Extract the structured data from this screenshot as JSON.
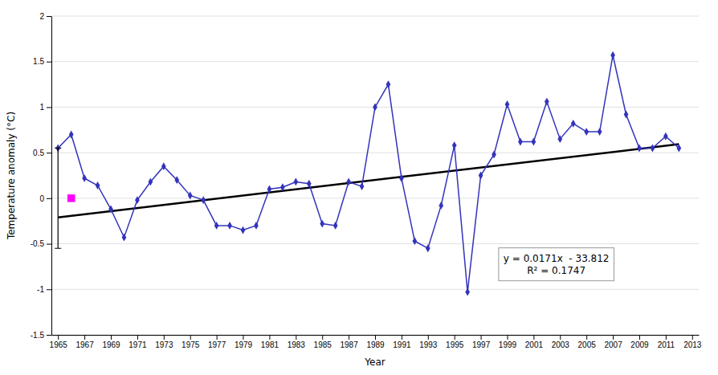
{
  "chart_data": {
    "type": "line",
    "xlabel": "Year",
    "ylabel": "Temperature anomaly (°C)",
    "x": [
      1965,
      1966,
      1967,
      1968,
      1969,
      1970,
      1971,
      1972,
      1973,
      1974,
      1975,
      1976,
      1977,
      1978,
      1979,
      1980,
      1981,
      1982,
      1983,
      1984,
      1985,
      1986,
      1987,
      1988,
      1989,
      1990,
      1991,
      1992,
      1993,
      1994,
      1995,
      1996,
      1997,
      1998,
      1999,
      2000,
      2001,
      2002,
      2003,
      2004,
      2005,
      2006,
      2007,
      2008,
      2009,
      2010,
      2011,
      2012
    ],
    "series": [
      {
        "type": "line",
        "color": "#3333BB",
        "marker": "diamond",
        "values": [
          0.55,
          0.7,
          0.22,
          0.14,
          -0.12,
          -0.43,
          -0.02,
          0.18,
          0.35,
          0.2,
          0.03,
          -0.02,
          -0.3,
          -0.3,
          -0.35,
          -0.3,
          0.1,
          0.12,
          0.18,
          0.16,
          -0.28,
          -0.3,
          0.18,
          0.13,
          1.0,
          1.25,
          0.22,
          -0.47,
          -0.55,
          -0.08,
          0.58,
          -1.03,
          0.25,
          0.48,
          1.03,
          0.62,
          0.62,
          1.06,
          0.65,
          0.82,
          0.73,
          0.73,
          1.57,
          0.92,
          0.55,
          0.55,
          0.68,
          0.55
        ]
      },
      {
        "type": "line",
        "color": "#000000",
        "x": [
          1965,
          2012
        ],
        "values": [
          -0.2105,
          0.5932
        ]
      },
      {
        "type": "scatter",
        "color": "#FF00FF",
        "marker": "square",
        "x": [
          1966
        ],
        "values": [
          0
        ]
      },
      {
        "type": "errorbar",
        "color": "#000000",
        "x": [
          1965
        ],
        "values": [
          0
        ],
        "error": [
          0.55
        ]
      }
    ],
    "annotations": [
      "y = 0.0171x  - 33.812",
      "R² = 0.1747"
    ],
    "xlim": [
      1964.5,
      2013.5
    ],
    "ylim": [
      -1.5,
      2
    ],
    "xticks": [
      1965,
      1967,
      1969,
      1971,
      1973,
      1975,
      1977,
      1979,
      1981,
      1983,
      1985,
      1987,
      1989,
      1991,
      1993,
      1995,
      1997,
      1999,
      2001,
      2003,
      2005,
      2007,
      2009,
      2011,
      2013
    ],
    "yticks": [
      -1.5,
      -1,
      -0.5,
      0,
      0.5,
      1,
      1.5,
      2
    ],
    "grid": true
  }
}
